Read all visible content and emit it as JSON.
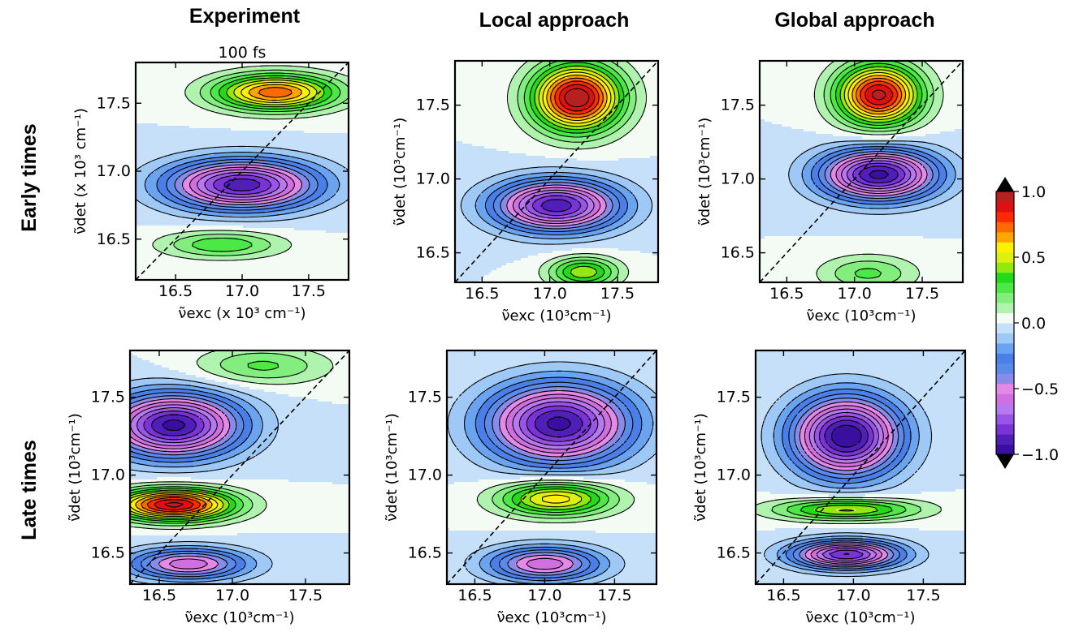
{
  "figure": {
    "column_titles": [
      "Experiment",
      "Local approach",
      "Global approach"
    ],
    "row_titles": [
      "Early times",
      "Late times"
    ]
  },
  "chart_data": [
    {
      "type": "contour",
      "column": "Experiment",
      "row": "Early times",
      "title": "100 fs",
      "xlabel": "ν̃exc (x 10³ cm⁻¹)",
      "ylabel": "ν̃det (x 10³ cm⁻¹)",
      "xlim": [
        16.2,
        17.8
      ],
      "ylim": [
        16.2,
        17.8
      ],
      "xticks": [
        "16.5",
        "17.0",
        "17.5"
      ],
      "yticks": [
        "16.5",
        "17.0",
        "17.5"
      ],
      "diagonal": true,
      "features": [
        {
          "x": 17.25,
          "y": 17.58,
          "amp": 0.75,
          "sx": 0.45,
          "sy": 0.13
        },
        {
          "x": 17.0,
          "y": 16.9,
          "amp": -0.9,
          "sx": 0.55,
          "sy": 0.18
        },
        {
          "x": 16.85,
          "y": 16.46,
          "amp": 0.3,
          "sx": 0.45,
          "sy": 0.1
        }
      ]
    },
    {
      "type": "contour",
      "column": "Local approach",
      "row": "Early times",
      "title": "",
      "xlabel": "ν̃exc (10³cm⁻¹)",
      "ylabel": "ν̃det (10³cm⁻¹)",
      "xlim": [
        16.3,
        17.8
      ],
      "ylim": [
        16.3,
        17.8
      ],
      "xticks": [
        "16.5",
        "17.0",
        "17.5"
      ],
      "yticks": [
        "16.5",
        "17.0",
        "17.5"
      ],
      "diagonal": true,
      "features": [
        {
          "x": 17.2,
          "y": 17.55,
          "amp": 1.0,
          "sx": 0.32,
          "sy": 0.22
        },
        {
          "x": 17.05,
          "y": 16.82,
          "amp": -0.9,
          "sx": 0.45,
          "sy": 0.17
        },
        {
          "x": 17.25,
          "y": 16.37,
          "amp": 0.45,
          "sx": 0.25,
          "sy": 0.1
        }
      ]
    },
    {
      "type": "contour",
      "column": "Global approach",
      "row": "Early times",
      "title": "",
      "xlabel": "ν̃exc (10³cm⁻¹)",
      "ylabel": "ν̃det (10³cm⁻¹)",
      "xlim": [
        16.3,
        17.8
      ],
      "ylim": [
        16.3,
        17.8
      ],
      "xticks": [
        "16.5",
        "17.0",
        "17.5"
      ],
      "yticks": [
        "16.5",
        "17.0",
        "17.5"
      ],
      "diagonal": true,
      "features": [
        {
          "x": 17.18,
          "y": 17.57,
          "amp": 0.95,
          "sx": 0.3,
          "sy": 0.2
        },
        {
          "x": 17.18,
          "y": 17.03,
          "amp": -0.95,
          "sx": 0.42,
          "sy": 0.17
        },
        {
          "x": 17.1,
          "y": 16.36,
          "amp": 0.25,
          "sx": 0.35,
          "sy": 0.12
        }
      ]
    },
    {
      "type": "contour",
      "column": "Experiment",
      "row": "Late times",
      "title": "",
      "xlabel": "ν̃exc (10³cm⁻¹)",
      "ylabel": "ν̃det (10³cm⁻¹)",
      "xlim": [
        16.3,
        17.8
      ],
      "ylim": [
        16.3,
        17.8
      ],
      "xticks": [
        "16.5",
        "17.0",
        "17.5"
      ],
      "yticks": [
        "16.5",
        "17.0",
        "17.5"
      ],
      "diagonal": true,
      "features": [
        {
          "x": 16.6,
          "y": 17.32,
          "amp": -0.95,
          "sx": 0.45,
          "sy": 0.2
        },
        {
          "x": 16.6,
          "y": 16.81,
          "amp": 0.95,
          "sx": 0.4,
          "sy": 0.1
        },
        {
          "x": 16.7,
          "y": 16.43,
          "amp": -0.6,
          "sx": 0.4,
          "sy": 0.1
        },
        {
          "x": 17.2,
          "y": 17.7,
          "amp": 0.25,
          "sx": 0.45,
          "sy": 0.12
        }
      ]
    },
    {
      "type": "contour",
      "column": "Local approach",
      "row": "Late times",
      "title": "",
      "xlabel": "ν̃exc (10³cm⁻¹)",
      "ylabel": "ν̃det (10³cm⁻¹)",
      "xlim": [
        16.3,
        17.8
      ],
      "ylim": [
        16.3,
        17.8
      ],
      "xticks": [
        "16.5",
        "17.0",
        "17.5"
      ],
      "yticks": [
        "16.5",
        "17.0",
        "17.5"
      ],
      "diagonal": true,
      "features": [
        {
          "x": 17.1,
          "y": 17.33,
          "amp": -0.95,
          "sx": 0.5,
          "sy": 0.25
        },
        {
          "x": 17.08,
          "y": 16.85,
          "amp": 0.6,
          "sx": 0.4,
          "sy": 0.11
        },
        {
          "x": 17.0,
          "y": 16.43,
          "amp": -0.6,
          "sx": 0.4,
          "sy": 0.11
        }
      ]
    },
    {
      "type": "contour",
      "column": "Global approach",
      "row": "Late times",
      "title": "",
      "xlabel": "ν̃exc (10³cm⁻¹)",
      "ylabel": "ν̃det (10³cm⁻¹)",
      "xlim": [
        16.3,
        17.8
      ],
      "ylim": [
        16.3,
        17.8
      ],
      "xticks": [
        "16.5",
        "17.0",
        "17.5"
      ],
      "yticks": [
        "16.5",
        "17.0",
        "17.5"
      ],
      "diagonal": true,
      "features": [
        {
          "x": 16.95,
          "y": 17.25,
          "amp": -1.0,
          "sx": 0.38,
          "sy": 0.25
        },
        {
          "x": 16.95,
          "y": 16.78,
          "amp": 0.5,
          "sx": 0.5,
          "sy": 0.07
        },
        {
          "x": 16.95,
          "y": 16.49,
          "amp": -0.85,
          "sx": 0.38,
          "sy": 0.09
        }
      ]
    }
  ],
  "colorbar": {
    "ticks": [
      "1.0",
      "0.5",
      "0.0",
      "−0.5",
      "−1.0"
    ],
    "tick_values": [
      1.0,
      0.5,
      0.0,
      -0.5,
      -1.0
    ],
    "range": [
      -1.0,
      1.0
    ],
    "colors": [
      "#3a0fa0",
      "#4f1fb8",
      "#7a33d6",
      "#9a55e6",
      "#b878f0",
      "#d070e0",
      "#e489e6",
      "#8a8ae8",
      "#5c8ae8",
      "#4a7ee8",
      "#6aa3f0",
      "#9ec8f5",
      "#c6e0fa",
      "#f4fbf4",
      "#b0f3ae",
      "#82ee7e",
      "#4ce845",
      "#24d81a",
      "#92e80f",
      "#ddf010",
      "#fff200",
      "#ffa500",
      "#ff6a00",
      "#ff2a00",
      "#e01010",
      "#b82020"
    ]
  }
}
